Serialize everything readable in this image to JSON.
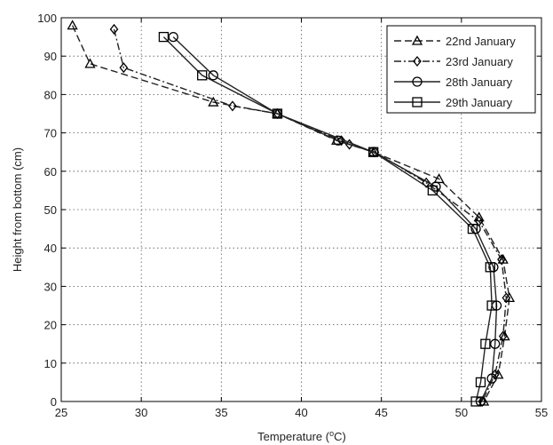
{
  "chart_data": {
    "type": "line",
    "title": "",
    "xlabel": "Temperature (",
    "xlabel_sup": "o",
    "xlabel_suffix": "C)",
    "ylabel": "Height from bottom (cm)",
    "xlim": [
      25,
      55
    ],
    "ylim": [
      0,
      100
    ],
    "xticks": [
      25,
      30,
      35,
      40,
      45,
      50,
      55
    ],
    "yticks": [
      0,
      10,
      20,
      30,
      40,
      50,
      60,
      70,
      80,
      90,
      100
    ],
    "grid": true,
    "legend_position": "top-right",
    "series": [
      {
        "name": "22nd January",
        "marker": "triangle",
        "line_style": "dashed",
        "color": "#222222",
        "points": [
          {
            "x": 25.7,
            "y": 98
          },
          {
            "x": 26.8,
            "y": 88
          },
          {
            "x": 34.5,
            "y": 78
          },
          {
            "x": 38.5,
            "y": 75
          },
          {
            "x": 42.2,
            "y": 68
          },
          {
            "x": 44.5,
            "y": 65
          },
          {
            "x": 48.6,
            "y": 58
          },
          {
            "x": 51.1,
            "y": 48
          },
          {
            "x": 52.6,
            "y": 37
          },
          {
            "x": 53.0,
            "y": 27
          },
          {
            "x": 52.7,
            "y": 17
          },
          {
            "x": 52.3,
            "y": 7
          },
          {
            "x": 51.4,
            "y": 0
          }
        ]
      },
      {
        "name": "23rd January",
        "marker": "diamond",
        "line_style": "dash-dot",
        "color": "#222222",
        "points": [
          {
            "x": 28.3,
            "y": 97
          },
          {
            "x": 28.9,
            "y": 87
          },
          {
            "x": 35.7,
            "y": 77
          },
          {
            "x": 38.5,
            "y": 75
          },
          {
            "x": 42.5,
            "y": 68
          },
          {
            "x": 43.0,
            "y": 67
          },
          {
            "x": 44.6,
            "y": 65
          },
          {
            "x": 47.8,
            "y": 57
          },
          {
            "x": 51.1,
            "y": 47
          },
          {
            "x": 52.5,
            "y": 37
          },
          {
            "x": 52.8,
            "y": 27
          },
          {
            "x": 52.6,
            "y": 17
          },
          {
            "x": 52.1,
            "y": 7
          },
          {
            "x": 51.3,
            "y": 0
          }
        ]
      },
      {
        "name": "28th January",
        "marker": "circle",
        "line_style": "solid",
        "color": "#222222",
        "points": [
          {
            "x": 32.0,
            "y": 95
          },
          {
            "x": 34.5,
            "y": 85
          },
          {
            "x": 38.5,
            "y": 75
          },
          {
            "x": 42.3,
            "y": 68
          },
          {
            "x": 44.5,
            "y": 65
          },
          {
            "x": 48.4,
            "y": 56
          },
          {
            "x": 50.9,
            "y": 45
          },
          {
            "x": 52.0,
            "y": 35
          },
          {
            "x": 52.2,
            "y": 25
          },
          {
            "x": 52.1,
            "y": 15
          },
          {
            "x": 51.9,
            "y": 6
          },
          {
            "x": 51.2,
            "y": 0
          }
        ]
      },
      {
        "name": "29th January",
        "marker": "square",
        "line_style": "solid",
        "color": "#222222",
        "points": [
          {
            "x": 31.4,
            "y": 95
          },
          {
            "x": 33.8,
            "y": 85
          },
          {
            "x": 38.5,
            "y": 75
          },
          {
            "x": 44.5,
            "y": 65
          },
          {
            "x": 48.2,
            "y": 55
          },
          {
            "x": 50.7,
            "y": 45
          },
          {
            "x": 51.8,
            "y": 35
          },
          {
            "x": 51.9,
            "y": 25
          },
          {
            "x": 51.5,
            "y": 15
          },
          {
            "x": 51.2,
            "y": 5
          },
          {
            "x": 50.9,
            "y": 0
          }
        ]
      }
    ]
  }
}
